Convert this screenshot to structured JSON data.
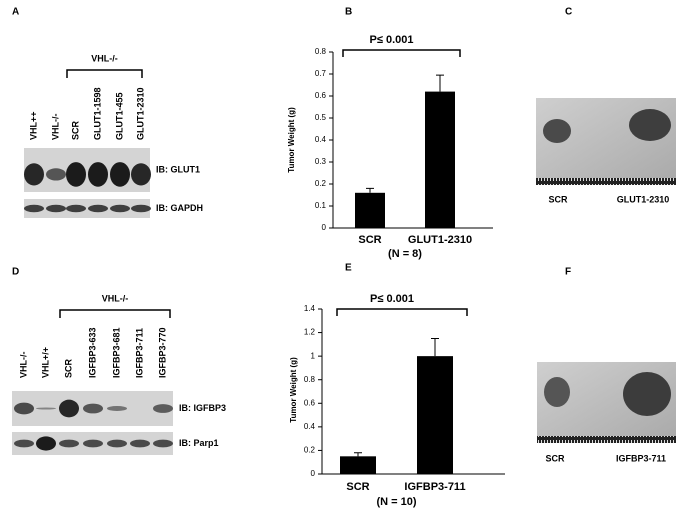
{
  "panels": {
    "A": {
      "letter": "A",
      "lanes": [
        "VHL++",
        "VHL-/-",
        "SCR",
        "GLUT1-1598",
        "GLUT1-455",
        "GLUT1-2310"
      ],
      "group": "VHL-/-",
      "blots": [
        "IB: GLUT1",
        "IB: GAPDH"
      ]
    },
    "C": {
      "letter": "C",
      "labels": [
        "SCR",
        "GLUT1-2310"
      ]
    },
    "D": {
      "letter": "D",
      "lanes": [
        "VHL-/-",
        "VHL+/+",
        "SCR",
        "IGFBP3-633",
        "IGFBP3-681",
        "IGFBP3-711",
        "IGFBP3-770"
      ],
      "group": "VHL-/-",
      "blots": [
        "IB: IGFBP3",
        "IB: Parp1"
      ]
    },
    "F": {
      "letter": "F",
      "labels": [
        "SCR",
        "IGFBP3-711"
      ]
    }
  },
  "chart_data": [
    {
      "type": "bar",
      "panel_label": "B",
      "ylabel": "Tumor Weight (g)",
      "annotation": "P≤ 0.001",
      "note": "(N = 8)",
      "categories": [
        "SCR",
        "GLUT1-2310"
      ],
      "values": [
        0.16,
        0.62
      ],
      "errors": [
        0.02,
        0.075
      ],
      "color": "#000000",
      "ylim": [
        0,
        0.8
      ],
      "yticks": [
        0,
        0.1,
        0.2,
        0.3,
        0.4,
        0.5,
        0.6,
        0.7,
        0.8
      ]
    },
    {
      "type": "bar",
      "panel_label": "E",
      "ylabel": "Tumor Weight (g)",
      "annotation": "P≤ 0.001",
      "note": "(N = 10)",
      "categories": [
        "SCR",
        "IGFBP3-711"
      ],
      "values": [
        0.15,
        1.0
      ],
      "errors": [
        0.03,
        0.15
      ],
      "color": "#000000",
      "ylim": [
        0,
        1.4
      ],
      "yticks": [
        0,
        0.2,
        0.4,
        0.6,
        0.8,
        1,
        1.2,
        1.4
      ]
    }
  ]
}
